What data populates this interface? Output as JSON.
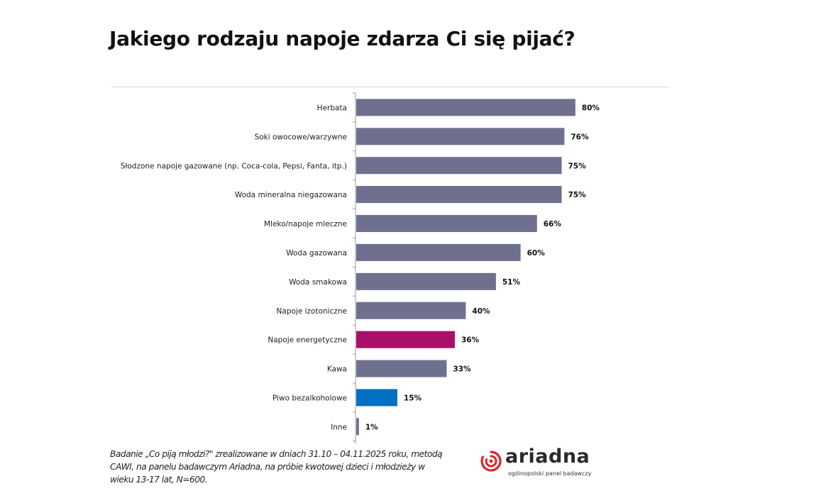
{
  "page": {
    "title": "Jakiego rodzaju napoje zdarza Ci się pijać?"
  },
  "chart_data": {
    "type": "bar",
    "orientation": "horizontal",
    "title": "Jakiego rodzaju napoje zdarza Ci się pijać?",
    "xlabel": "",
    "ylabel": "",
    "xlim": [
      0,
      100
    ],
    "grid": false,
    "value_suffix": "%",
    "categories": [
      "Herbata",
      "Soki owocowe/warzywne",
      "Słodzone napoje gazowane (np. Coca-cola, Pepsi, Fanta, itp.)",
      "Woda mineralna niegazowana",
      "Mleko/napoje mleczne",
      "Woda gazowana",
      "Woda smakowa",
      "Napoje izotoniczne",
      "Napoje energetyczne",
      "Kawa",
      "Piwo bezalkoholowe",
      "Inne"
    ],
    "values": [
      80,
      76,
      75,
      75,
      66,
      60,
      51,
      40,
      36,
      33,
      15,
      1
    ],
    "labels": [
      "80%",
      "76%",
      "75%",
      "75%",
      "66%",
      "60%",
      "51%",
      "40%",
      "36%",
      "33%",
      "15%",
      "1%"
    ],
    "colors": [
      "#6f6f8e",
      "#6f6f8e",
      "#6f6f8e",
      "#6f6f8e",
      "#6f6f8e",
      "#6f6f8e",
      "#6f6f8e",
      "#6f6f8e",
      "#a8106a",
      "#6f6f8e",
      "#0070c0",
      "#6f6f8e"
    ]
  },
  "footnote": "Badanie „Co piją młodzi?\" zrealizowane w dniach 31.10 – 04.11.2025 roku, metodą CAWI, na panelu badawczym Ariadna, na próbie kwotowej dzieci i młodzieży w wieku 13-17 lat, N=600.",
  "logo": {
    "name": "ariadna",
    "tagline": "ogólnopolski panel badawczy",
    "color": "#d9262c"
  }
}
